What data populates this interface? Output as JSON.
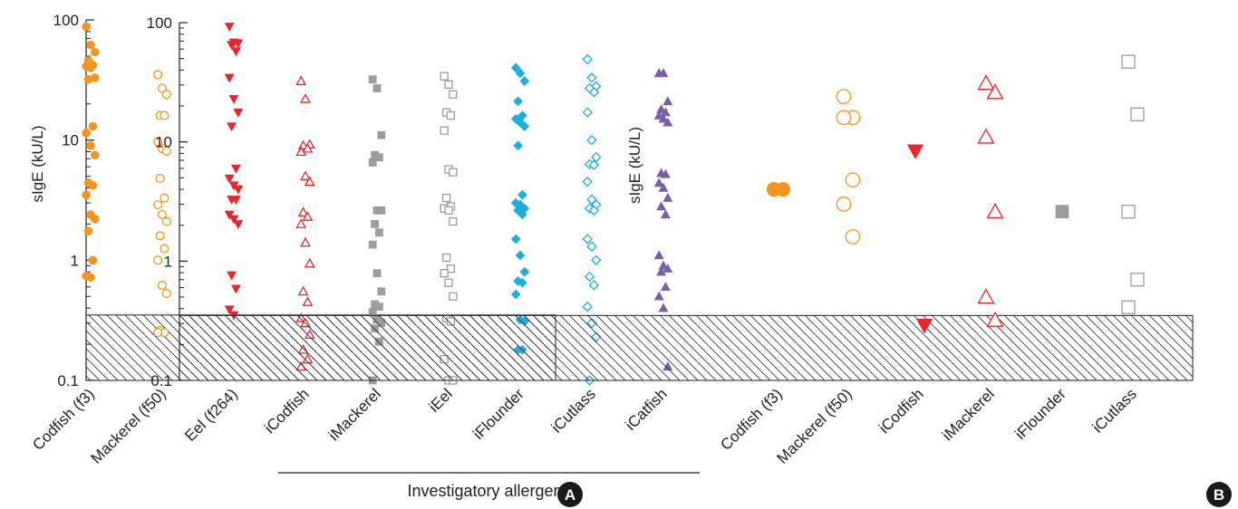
{
  "chart_data": [
    {
      "panel": "A",
      "type": "scatter",
      "ylabel": "sIgE (kU/L)",
      "yscale": "log",
      "ylim": [
        0.1,
        100
      ],
      "yticks": [
        "0.1",
        "1",
        "10",
        "100"
      ],
      "shaded_region": [
        0.1,
        0.35
      ],
      "group_label": "Investigatory allergens",
      "group_range": [
        "iCodfish",
        "iCatfish"
      ],
      "categories": [
        "Codfish (f3)",
        "Mackerel (f50)",
        "Eel (f264)",
        "iCodfish",
        "iMackerel",
        "iEel",
        "iFlounder",
        "iCutlass",
        "iCatfish"
      ],
      "series": [
        {
          "category": "Codfish (f3)",
          "marker": "circle",
          "filled": true,
          "color": "#f7941d",
          "values": [
            88,
            62,
            54,
            46,
            42,
            41,
            40,
            33,
            32,
            13,
            11.5,
            9,
            7.5,
            4.4,
            4.2,
            3.5,
            2.4,
            2.2,
            1.75,
            1.0,
            0.74,
            0.72
          ]
        },
        {
          "category": "Mackerel (f50)",
          "marker": "circle",
          "filled": false,
          "color": "#f7941d",
          "values": [
            35,
            27,
            24,
            16,
            16,
            9.7,
            8.5,
            8.1,
            4.8,
            3.3,
            2.9,
            2.4,
            2.1,
            1.6,
            1.25,
            1.0,
            0.62,
            0.53,
            0.26,
            0.25,
            0.25
          ]
        },
        {
          "category": "Eel (f264)",
          "marker": "triangle-down",
          "filled": true,
          "color": "#e8262c",
          "values": [
            88,
            65,
            64,
            62,
            55,
            33,
            22,
            17,
            13,
            5.8,
            4.8,
            4.2,
            3.9,
            3.2,
            3.2,
            2.4,
            2.2,
            2.0,
            0.75,
            0.58,
            0.39,
            0.35
          ]
        },
        {
          "category": "iCodfish",
          "marker": "triangle-up",
          "filled": false,
          "color": "#e8262c",
          "values": [
            31,
            22,
            9.2,
            9.0,
            8.5,
            8.0,
            5.0,
            4.5,
            2.5,
            2.3,
            2.0,
            1.4,
            0.94,
            0.55,
            0.45,
            0.33,
            0.3,
            0.24,
            0.18,
            0.15,
            0.13
          ]
        },
        {
          "category": "iMackerel",
          "marker": "square",
          "filled": true,
          "color": "#9d9d9d",
          "values": [
            32,
            27,
            11,
            7.5,
            7.2,
            6.5,
            2.6,
            2.6,
            2.0,
            1.7,
            1.35,
            0.78,
            0.55,
            0.43,
            0.41,
            0.37,
            0.32,
            0.3,
            0.27,
            0.21,
            0.1
          ]
        },
        {
          "category": "iEel",
          "marker": "square",
          "filled": false,
          "color": "#9d9d9d",
          "values": [
            34,
            29,
            24,
            17,
            16,
            12,
            5.7,
            5.4,
            3.3,
            2.8,
            2.7,
            2.6,
            2.1,
            1.05,
            0.85,
            0.78,
            0.65,
            0.5,
            0.33,
            0.31,
            0.15,
            0.1,
            0.1
          ]
        },
        {
          "category": "iFlounder",
          "marker": "diamond",
          "filled": true,
          "color": "#1eaedb",
          "values": [
            40,
            36,
            31,
            21,
            16,
            15,
            14,
            13,
            9,
            3.5,
            3.0,
            2.9,
            2.7,
            2.6,
            2.4,
            1.5,
            1.1,
            0.8,
            0.67,
            0.65,
            0.52,
            0.32,
            0.31,
            0.18,
            0.18
          ]
        },
        {
          "category": "iCutlass",
          "marker": "diamond",
          "filled": false,
          "color": "#1eaedb",
          "values": [
            47,
            33,
            28,
            27,
            25,
            17,
            10,
            7.2,
            6.3,
            6.2,
            4.5,
            3.2,
            2.9,
            2.7,
            2.6,
            1.5,
            1.3,
            1.0,
            0.73,
            0.62,
            0.41,
            0.3,
            0.23,
            0.1
          ]
        },
        {
          "category": "iCatfish",
          "marker": "triangle-up",
          "filled": true,
          "color": "#7b5ea7",
          "values": [
            36,
            36,
            21,
            18,
            17,
            16,
            15,
            14,
            5.3,
            5.2,
            4.4,
            4.0,
            3.3,
            2.8,
            2.4,
            1.1,
            0.9,
            0.85,
            0.8,
            0.6,
            0.5,
            0.4,
            0.13
          ]
        }
      ]
    },
    {
      "panel": "B",
      "type": "scatter",
      "ylabel": "sIgE (kU/L)",
      "yscale": "log",
      "ylim": [
        0.1,
        100
      ],
      "yticks": [
        "0.1",
        "1",
        "10",
        "100"
      ],
      "shaded_region": [
        0.1,
        0.35
      ],
      "categories": [
        "Codfish (f3)",
        "Mackerel (f50)",
        "iCodfish",
        "iMackerel",
        "iFlounder",
        "iCutlass"
      ],
      "series": [
        {
          "category": "Codfish (f3)",
          "marker": "circle",
          "filled": true,
          "color": "#f7941d",
          "values": [
            4.0,
            4.0
          ]
        },
        {
          "category": "Mackerel (f50)",
          "marker": "circle",
          "filled": false,
          "color": "#f7941d",
          "values": [
            24,
            16,
            16,
            4.8,
            3.0,
            1.6
          ]
        },
        {
          "category": "iCodfish",
          "marker": "triangle-down",
          "filled": true,
          "color": "#e8262c",
          "values": [
            8.4,
            0.29
          ]
        },
        {
          "category": "iMackerel",
          "marker": "triangle-up",
          "filled": false,
          "color": "#e8262c",
          "values": [
            31,
            26,
            11,
            2.6,
            0.5,
            0.32
          ]
        },
        {
          "category": "iFlounder",
          "marker": "square",
          "filled": true,
          "color": "#9d9d9d",
          "values": [
            2.6
          ]
        },
        {
          "category": "iCutlass",
          "marker": "square",
          "filled": false,
          "color": "#9d9d9d",
          "values": [
            47,
            17,
            2.6,
            0.7,
            0.41
          ]
        }
      ]
    }
  ],
  "panel_badges": [
    "A",
    "B"
  ]
}
